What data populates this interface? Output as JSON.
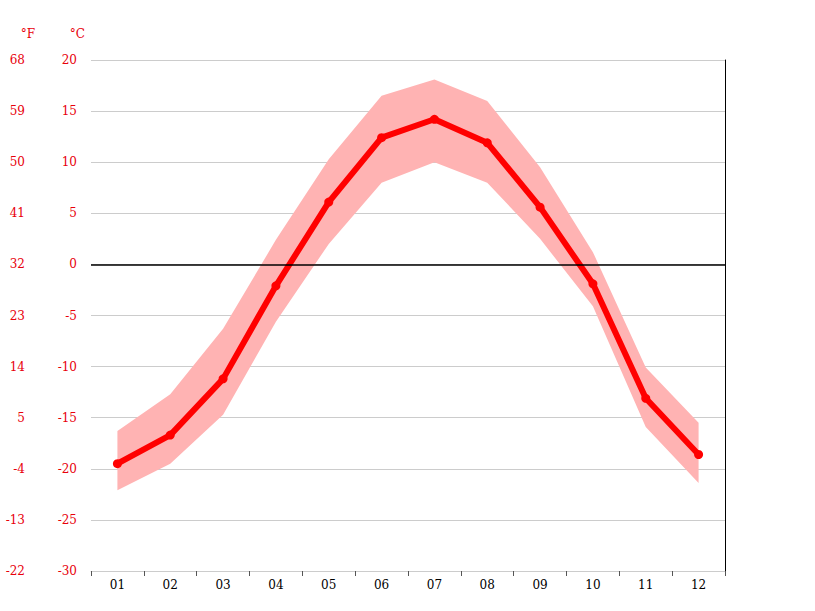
{
  "chart_data": {
    "type": "line",
    "categories": [
      "01",
      "02",
      "03",
      "04",
      "05",
      "06",
      "07",
      "08",
      "09",
      "10",
      "11",
      "12"
    ],
    "series": [
      {
        "color": "#ff0000",
        "marker": "circle",
        "values": [
          -19.5,
          -16.7,
          -11.2,
          -2.1,
          6.1,
          12.4,
          14.2,
          11.9,
          5.6,
          -1.9,
          -13.1,
          -18.6
        ],
        "max": [
          -16.3,
          -12.7,
          -6.3,
          2.4,
          10.3,
          16.5,
          18.1,
          16.0,
          9.5,
          1.2,
          -10.1,
          -15.5
        ],
        "min": [
          -22.1,
          -19.5,
          -14.7,
          -5.6,
          2.0,
          8.0,
          10.0,
          8.0,
          2.5,
          -4.1,
          -15.9,
          -21.4
        ]
      }
    ],
    "ylabel": "°C",
    "ylim": [
      -30,
      20
    ],
    "yticks": [
      -30,
      -25,
      -20,
      -15,
      -10,
      -5,
      0,
      5,
      10,
      15,
      20
    ],
    "y2label": "°F",
    "y2lim": [
      -22,
      68
    ],
    "y2ticks": [
      -22,
      -13,
      -4,
      5,
      14,
      23,
      32,
      41,
      50,
      59,
      68
    ],
    "zero_line": 0,
    "grid": true
  }
}
